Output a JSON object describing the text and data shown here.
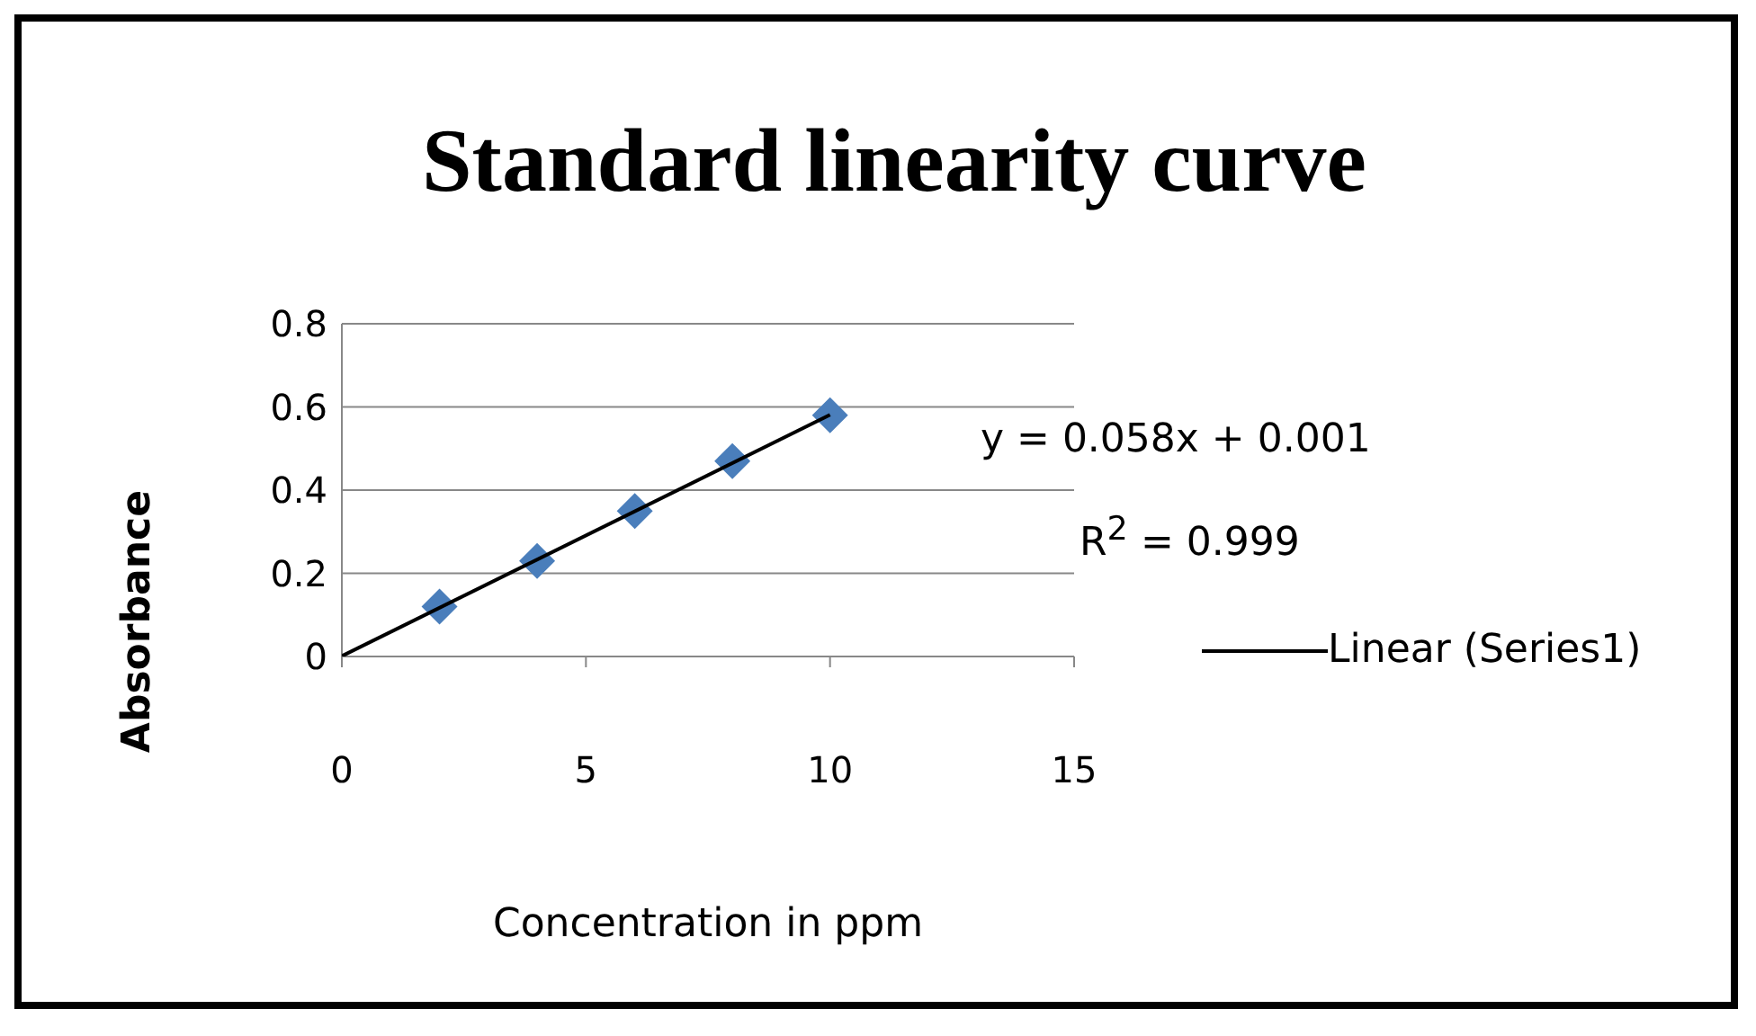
{
  "chart_data": {
    "type": "scatter",
    "title": "Standard linearity curve",
    "xlabel": "Concentration in ppm",
    "ylabel": "Absorbance",
    "annotations": [
      "y = 0.058x + 0.001",
      "R$^{2}$ = 0.999"
    ],
    "series": [
      {
        "type": "scatter",
        "color": "#4a7ebb",
        "marker": "diamond",
        "x": [
          2,
          4,
          6,
          8,
          10
        ],
        "values": [
          0.12,
          0.23,
          0.35,
          0.47,
          0.58
        ]
      },
      {
        "type": "line",
        "name": "Linear (Series1)",
        "color": "#000000",
        "marker": "none",
        "x": [
          0,
          10
        ],
        "values": [
          0.001,
          0.581
        ]
      }
    ],
    "xlim": [
      0,
      15
    ],
    "xticks": [
      0,
      5,
      10,
      15
    ],
    "ylim": [
      0,
      0.8
    ],
    "yticks": [
      0,
      0.2,
      0.4,
      0.6,
      0.8
    ],
    "grid": "y",
    "legend": "right"
  }
}
